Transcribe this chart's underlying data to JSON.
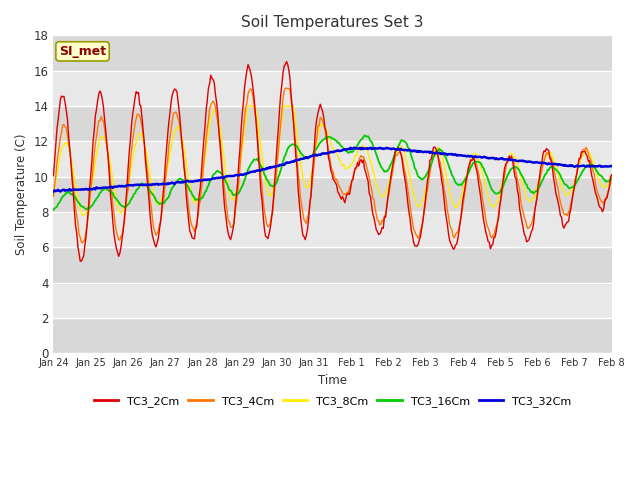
{
  "title": "Soil Temperatures Set 3",
  "xlabel": "Time",
  "ylabel": "Soil Temperature (C)",
  "ylim": [
    0,
    18
  ],
  "yticks": [
    0,
    2,
    4,
    6,
    8,
    10,
    12,
    14,
    16,
    18
  ],
  "fig_bg": "#ffffff",
  "plot_bg_light": "#f0f0f0",
  "plot_bg_dark": "#e0e0e0",
  "annotation_text": "SI_met",
  "annotation_color": "#8b0000",
  "annotation_bg": "#ffffcc",
  "annotation_border": "#999900",
  "line_colors": {
    "TC3_2Cm": "#dd0000",
    "TC3_4Cm": "#ff7700",
    "TC3_8Cm": "#ffee00",
    "TC3_16Cm": "#00cc00",
    "TC3_32Cm": "#0000dd"
  },
  "x_tick_labels": [
    "Jan 24",
    "Jan 25",
    "Jan 26",
    "Jan 27",
    "Jan 28",
    "Jan 29",
    "Jan 30",
    "Jan 31",
    "Feb 1",
    "Feb 2",
    "Feb 3",
    "Feb 4",
    "Feb 5",
    "Feb 6",
    "Feb 7",
    "Feb 8"
  ],
  "num_points": 480
}
